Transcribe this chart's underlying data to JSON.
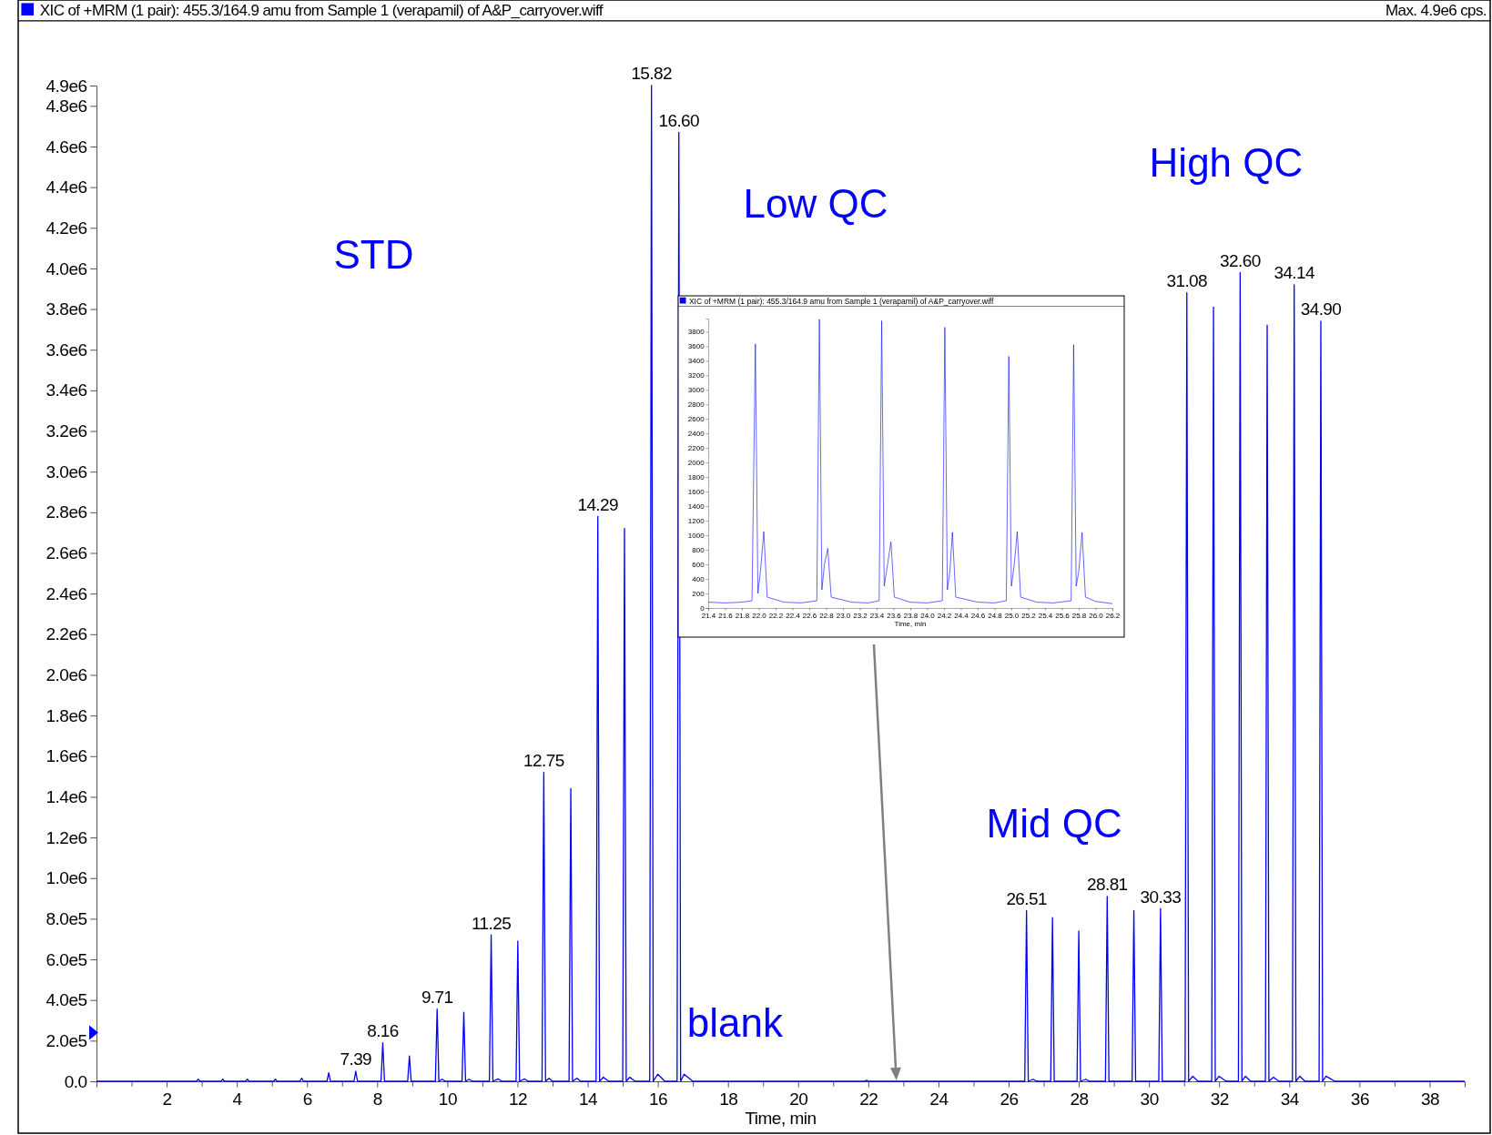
{
  "chart_data": [
    {
      "type": "line",
      "title": "XIC of +MRM (1 pair): 455.3/164.9 amu from Sample 1 (verapamil) of A&P_carryover.wiff",
      "subtitle": "Max. 4.9e6 cps.",
      "xlabel": "Time, min",
      "color": "#0000ff",
      "x": [
        0,
        2.85,
        2.9,
        2.95,
        3.55,
        3.6,
        3.65,
        4.25,
        4.3,
        4.35,
        5.05,
        5.1,
        5.15,
        5.8,
        5.85,
        5.9,
        6.57,
        6.62,
        6.67,
        7.34,
        7.39,
        7.44,
        8.11,
        8.16,
        8.21,
        8.87,
        8.92,
        8.97,
        9.66,
        9.71,
        9.76,
        9.85,
        9.95,
        10.42,
        10.47,
        10.52,
        10.62,
        10.72,
        11.2,
        11.25,
        11.3,
        11.45,
        11.55,
        11.96,
        12.01,
        12.06,
        12.2,
        12.3,
        12.7,
        12.75,
        12.8,
        12.9,
        13.0,
        13.47,
        13.52,
        13.57,
        13.7,
        13.8,
        14.24,
        14.29,
        14.34,
        14.45,
        14.6,
        15.0,
        15.05,
        15.1,
        15.2,
        15.35,
        15.77,
        15.82,
        15.87,
        16.0,
        16.2,
        16.55,
        16.6,
        16.65,
        16.75,
        17.0,
        21.9,
        21.95,
        22.0,
        26.46,
        26.51,
        26.56,
        26.7,
        26.8,
        27.2,
        27.25,
        27.3,
        27.95,
        28.0,
        28.05,
        28.2,
        28.3,
        28.76,
        28.81,
        28.86,
        29.52,
        29.57,
        29.62,
        30.28,
        30.33,
        30.38,
        31.03,
        31.08,
        31.13,
        31.25,
        31.4,
        31.79,
        31.84,
        31.89,
        32.0,
        32.2,
        32.55,
        32.6,
        32.65,
        32.75,
        32.9,
        33.32,
        33.37,
        33.42,
        33.55,
        33.7,
        34.09,
        34.14,
        34.19,
        34.3,
        34.45,
        34.85,
        34.9,
        34.95,
        35.05,
        35.3,
        39
      ],
      "values": [
        0,
        0,
        10000,
        0,
        0,
        10000,
        0,
        0,
        10000,
        0,
        0,
        10000,
        0,
        0,
        15000,
        0,
        0,
        42000,
        0,
        0,
        50000,
        0,
        0,
        190000,
        0,
        0,
        125000,
        0,
        0,
        355000,
        0,
        10000,
        0,
        0,
        340000,
        0,
        10000,
        0,
        0,
        720000,
        0,
        12000,
        0,
        0,
        690000,
        0,
        12000,
        0,
        0,
        1520000,
        0,
        15000,
        0,
        0,
        1440000,
        0,
        15000,
        0,
        0,
        2780000,
        0,
        20000,
        0,
        0,
        2720000,
        0,
        20000,
        0,
        0,
        4900000,
        0,
        35000,
        0,
        0,
        4670000,
        0,
        35000,
        0,
        0,
        5000,
        0,
        0,
        840000,
        0,
        10000,
        0,
        0,
        805000,
        0,
        0,
        740000,
        0,
        10000,
        0,
        0,
        910000,
        0,
        0,
        840000,
        0,
        0,
        850000,
        0,
        0,
        3880000,
        0,
        25000,
        0,
        0,
        3810000,
        0,
        25000,
        0,
        0,
        3980000,
        0,
        25000,
        0,
        0,
        3720000,
        0,
        20000,
        0,
        0,
        3920000,
        0,
        25000,
        0,
        0,
        3740000,
        0,
        25000,
        0,
        0
      ],
      "xlim": [
        0,
        39
      ],
      "xticks": [
        {
          "value": 1,
          "label": null
        },
        2,
        {
          "value": 3,
          "label": null
        },
        4,
        {
          "value": 5,
          "label": null
        },
        6,
        {
          "value": 7,
          "label": null
        },
        8,
        {
          "value": 9,
          "label": null
        },
        10,
        {
          "value": 11,
          "label": null
        },
        12,
        {
          "value": 13,
          "label": null
        },
        14,
        {
          "value": 15,
          "label": null
        },
        16,
        {
          "value": 17,
          "label": null
        },
        18,
        {
          "value": 19,
          "label": null
        },
        20,
        {
          "value": 21,
          "label": null
        },
        22,
        {
          "value": 23,
          "label": null
        },
        24,
        {
          "value": 25,
          "label": null
        },
        26,
        {
          "value": 27,
          "label": null
        },
        28,
        {
          "value": 29,
          "label": null
        },
        30,
        {
          "value": 31,
          "label": null
        },
        32,
        {
          "value": 33,
          "label": null
        },
        34,
        {
          "value": 35,
          "label": null
        },
        36,
        {
          "value": 37,
          "label": null
        },
        38
      ],
      "ylim": [
        0,
        4900000
      ],
      "yticks": [
        {
          "value": 0,
          "label": "0.0"
        },
        {
          "value": 200000,
          "label": "2.0e5"
        },
        {
          "value": 400000,
          "label": "4.0e5"
        },
        {
          "value": 600000,
          "label": "6.0e5"
        },
        {
          "value": 800000,
          "label": "8.0e5"
        },
        {
          "value": 1000000,
          "label": "1.0e6"
        },
        {
          "value": 1200000,
          "label": "1.2e6"
        },
        {
          "value": 1400000,
          "label": "1.4e6"
        },
        {
          "value": 1600000,
          "label": "1.6e6"
        },
        {
          "value": 1800000,
          "label": "1.8e6"
        },
        {
          "value": 2000000,
          "label": "2.0e6"
        },
        {
          "value": 2200000,
          "label": "2.2e6"
        },
        {
          "value": 2400000,
          "label": "2.4e6"
        },
        {
          "value": 2600000,
          "label": "2.6e6"
        },
        {
          "value": 2800000,
          "label": "2.8e6"
        },
        {
          "value": 3000000,
          "label": "3.0e6"
        },
        {
          "value": 3200000,
          "label": "3.2e6"
        },
        {
          "value": 3400000,
          "label": "3.4e6"
        },
        {
          "value": 3600000,
          "label": "3.6e6"
        },
        {
          "value": 3800000,
          "label": "3.8e6"
        },
        {
          "value": 4000000,
          "label": "4.0e6"
        },
        {
          "value": 4200000,
          "label": "4.2e6"
        },
        {
          "value": 4400000,
          "label": "4.4e6"
        },
        {
          "value": 4600000,
          "label": "4.6e6"
        },
        {
          "value": 4800000,
          "label": "4.8e6"
        },
        {
          "value": 4900000,
          "label": "4.9e6"
        }
      ],
      "annotations": [
        {
          "text": "7.39",
          "x": 7.39,
          "y": 50000
        },
        {
          "text": "8.16",
          "x": 8.16,
          "y": 190000
        },
        {
          "text": "9.71",
          "x": 9.71,
          "y": 355000
        },
        {
          "text": "11.25",
          "x": 11.25,
          "y": 720000
        },
        {
          "text": "12.75",
          "x": 12.75,
          "y": 1520000
        },
        {
          "text": "14.29",
          "x": 14.29,
          "y": 2780000
        },
        {
          "text": "15.82",
          "x": 15.82,
          "y": 4900000
        },
        {
          "text": "16.60",
          "x": 16.6,
          "y": 4670000
        },
        {
          "text": "26.51",
          "x": 26.51,
          "y": 840000
        },
        {
          "text": "28.81",
          "x": 28.81,
          "y": 910000
        },
        {
          "text": "30.33",
          "x": 30.33,
          "y": 850000
        },
        {
          "text": "31.08",
          "x": 31.08,
          "y": 3880000
        },
        {
          "text": "32.60",
          "x": 32.6,
          "y": 3980000
        },
        {
          "text": "34.14",
          "x": 34.14,
          "y": 3920000
        },
        {
          "text": "34.90",
          "x": 34.9,
          "y": 3740000
        },
        "STD",
        "Low QC",
        "High QC",
        "Mid QC",
        "blank"
      ]
    },
    {
      "type": "line",
      "title": "XIC of +MRM (1 pair): 455.3/164.9 amu from Sample 1 (verapamil) of A&P_carryover.wiff",
      "xlabel": "Time, min",
      "color": "#0000ff",
      "x": [
        21.4,
        21.6,
        21.8,
        21.92,
        21.96,
        21.99,
        22.02,
        22.06,
        22.1,
        22.3,
        22.5,
        22.69,
        22.72,
        22.75,
        22.78,
        22.82,
        22.86,
        23.1,
        23.3,
        23.43,
        23.46,
        23.49,
        23.53,
        23.57,
        23.61,
        23.8,
        24.0,
        24.18,
        24.21,
        24.24,
        24.27,
        24.3,
        24.34,
        24.6,
        24.8,
        24.94,
        24.97,
        25.0,
        25.03,
        25.07,
        25.11,
        25.3,
        25.5,
        25.71,
        25.74,
        25.77,
        25.8,
        25.84,
        25.88,
        26.0,
        26.2
      ],
      "values": [
        80,
        70,
        80,
        100,
        3630,
        200,
        500,
        1050,
        150,
        80,
        70,
        100,
        3970,
        250,
        600,
        820,
        150,
        80,
        70,
        100,
        3950,
        300,
        600,
        910,
        150,
        80,
        70,
        100,
        3860,
        250,
        500,
        1040,
        150,
        80,
        70,
        100,
        3460,
        300,
        550,
        1050,
        150,
        80,
        70,
        100,
        3620,
        300,
        500,
        1040,
        150,
        90,
        60
      ],
      "xlim": [
        21.4,
        26.2
      ],
      "xticks": [
        {
          "value": 21.4,
          "label": "21.4"
        },
        {
          "value": 21.6,
          "label": "21.6"
        },
        {
          "value": 21.8,
          "label": "21.8"
        },
        {
          "value": 22,
          "label": "22.0"
        },
        {
          "value": 22.2,
          "label": "22.2"
        },
        {
          "value": 22.4,
          "label": "22.4"
        },
        {
          "value": 22.6,
          "label": "22.6"
        },
        {
          "value": 22.8,
          "label": "22.8"
        },
        {
          "value": 23,
          "label": "23.0"
        },
        {
          "value": 23.2,
          "label": "23.2"
        },
        {
          "value": 23.4,
          "label": "23.4"
        },
        {
          "value": 23.6,
          "label": "23.6"
        },
        {
          "value": 23.8,
          "label": "23.8"
        },
        {
          "value": 24,
          "label": "24.0"
        },
        {
          "value": 24.2,
          "label": "24.2"
        },
        {
          "value": 24.4,
          "label": "24.4"
        },
        {
          "value": 24.6,
          "label": "24.6"
        },
        {
          "value": 24.8,
          "label": "24.8"
        },
        {
          "value": 25,
          "label": "25.0"
        },
        {
          "value": 25.2,
          "label": "25.2"
        },
        {
          "value": 25.4,
          "label": "25.4"
        },
        {
          "value": 25.6,
          "label": "25.6"
        },
        {
          "value": 25.8,
          "label": "25.8"
        },
        {
          "value": 26,
          "label": "26.0"
        },
        {
          "value": 26.2,
          "label": "26.2"
        }
      ],
      "ylim": [
        0,
        3980
      ],
      "yticks": [
        0,
        200,
        400,
        600,
        800,
        1000,
        1200,
        1400,
        1600,
        1800,
        2000,
        2200,
        2400,
        2600,
        2800,
        3000,
        3200,
        3400,
        3600,
        3800
      ]
    }
  ]
}
